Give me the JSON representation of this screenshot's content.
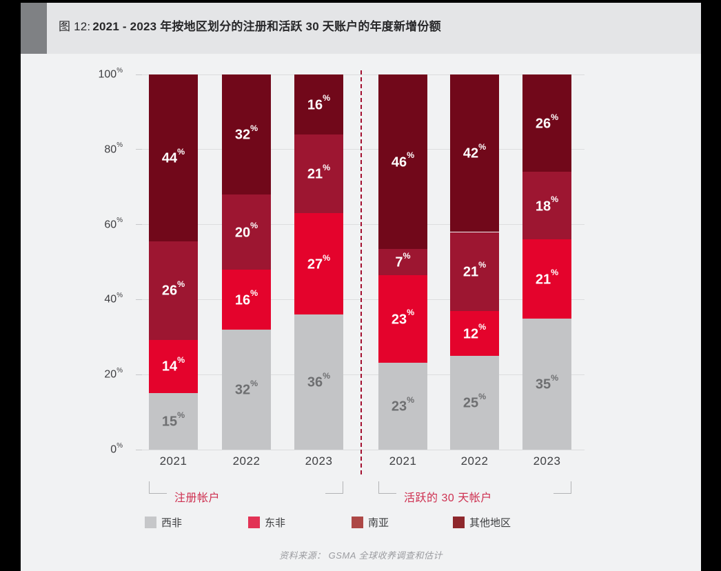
{
  "header": {
    "title_prefix": "图 12:",
    "title_rest": "2021 - 2023 年按地区划分的注册和活跃 30 天账户的年度新增份额"
  },
  "chart_data": {
    "type": "bar",
    "stacked": true,
    "unit": "%",
    "ylim": [
      0,
      100
    ],
    "yticks": [
      0,
      20,
      40,
      60,
      80,
      100
    ],
    "grid": true,
    "series_order": [
      "西非",
      "东非",
      "南亚",
      "其他地区"
    ],
    "series_colors": {
      "西非": "#c3c4c6",
      "东非": "#e4032c",
      "南亚": "#9d1631",
      "其他地区": "#71081a"
    },
    "value_label_colors": {
      "西非": "#6e6f71",
      "东非": "#ffffff",
      "南亚": "#ffffff",
      "其他地区": "#ffffff"
    },
    "groups": [
      {
        "label": "注册帐户",
        "categories": [
          "2021",
          "2022",
          "2023"
        ],
        "series": [
          {
            "name": "西非",
            "values": [
              15,
              32,
              36
            ]
          },
          {
            "name": "东非",
            "values": [
              14,
              16,
              27
            ]
          },
          {
            "name": "南亚",
            "values": [
              26,
              20,
              21
            ]
          },
          {
            "name": "其他地区",
            "values": [
              44,
              32,
              16
            ]
          }
        ]
      },
      {
        "label": "活跃的 30 天帐户",
        "categories": [
          "2021",
          "2022",
          "2023"
        ],
        "series": [
          {
            "name": "西非",
            "values": [
              23,
              25,
              35
            ]
          },
          {
            "name": "东非",
            "values": [
              23,
              12,
              21
            ]
          },
          {
            "name": "南亚",
            "values": [
              7,
              21,
              18
            ]
          },
          {
            "name": "其他地区",
            "values": [
              46,
              42,
              26
            ]
          }
        ]
      }
    ],
    "group_label_color": "#ce3050",
    "separator_color": "#a30e2e",
    "legend_position": "bottom"
  },
  "legend": {
    "items": [
      {
        "label": "西非",
        "color": "#c6c7c9"
      },
      {
        "label": "东非",
        "color": "#e23355"
      },
      {
        "label": "南亚",
        "color": "#ad4846"
      },
      {
        "label": "其他地区",
        "color": "#8e282c"
      }
    ]
  },
  "source": "资料来源： GSMA 全球收养调查和估计"
}
